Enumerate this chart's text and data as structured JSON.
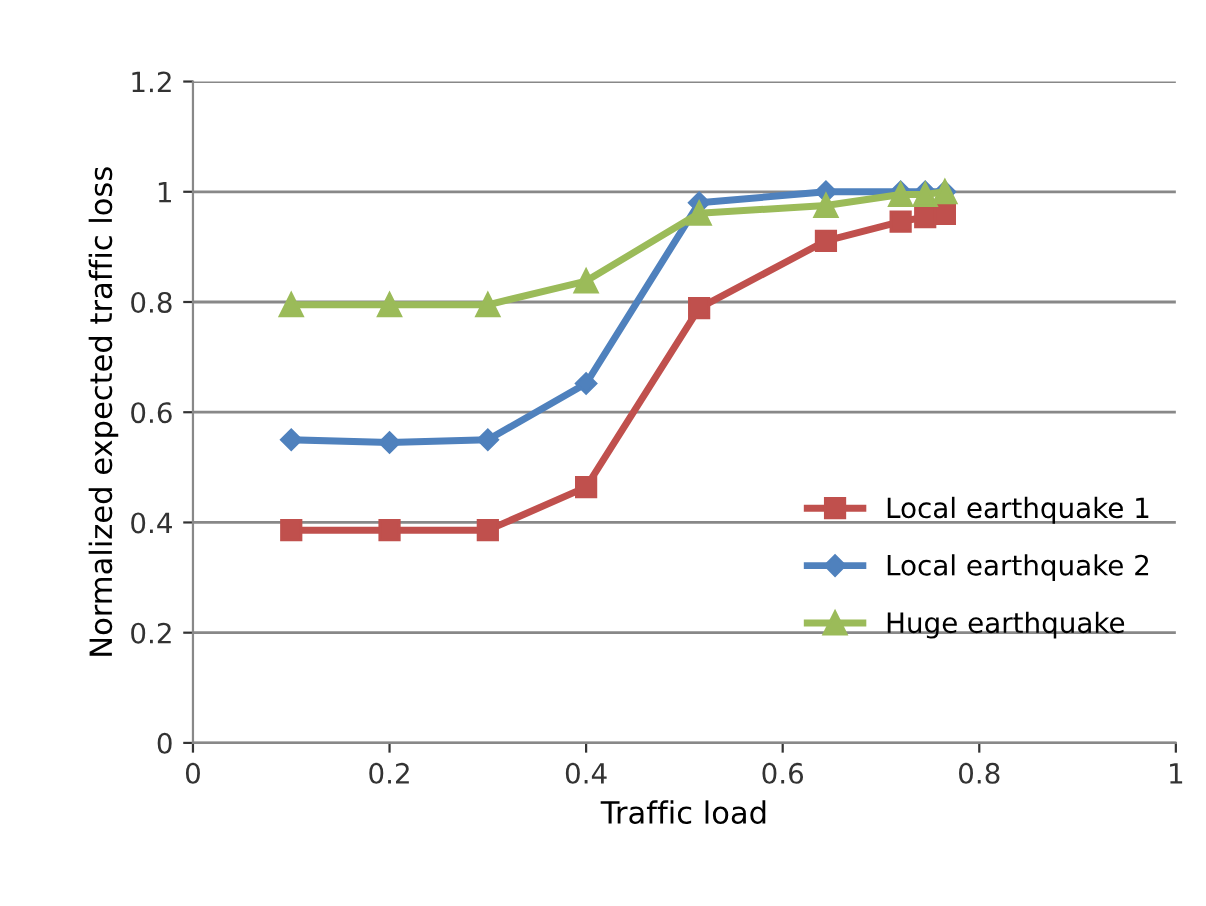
{
  "chart_data": {
    "type": "line",
    "xlabel": "Traffic load",
    "ylabel": "Normalized expected traffic loss",
    "x": [
      0.1,
      0.2,
      0.3,
      0.4,
      0.515,
      0.644,
      0.72,
      0.745,
      0.765
    ],
    "series": [
      {
        "name": "Local earthquake 1",
        "color": "#c0504d",
        "marker": "square",
        "values": [
          0.386,
          0.386,
          0.386,
          0.464,
          0.789,
          0.911,
          0.946,
          0.954,
          0.96
        ]
      },
      {
        "name": "Local earthquake 2",
        "color": "#4f81bd",
        "marker": "diamond",
        "values": [
          0.55,
          0.545,
          0.55,
          0.652,
          0.98,
          1.0,
          1.0,
          1.0,
          1.0
        ]
      },
      {
        "name": "Huge earthquake",
        "color": "#9bbb59",
        "marker": "triangle",
        "values": [
          0.795,
          0.795,
          0.795,
          0.838,
          0.961,
          0.975,
          0.995,
          0.995,
          1.0
        ]
      }
    ],
    "xlim": [
      0,
      1
    ],
    "xticks": [
      0,
      0.2,
      0.4,
      0.6,
      0.8,
      1
    ],
    "ylim": [
      0,
      1.2
    ],
    "yticks": [
      0,
      0.2,
      0.4,
      0.6,
      0.8,
      1,
      1.2
    ],
    "grid": "y",
    "legend": "bottom right",
    "line_style": "solid"
  }
}
